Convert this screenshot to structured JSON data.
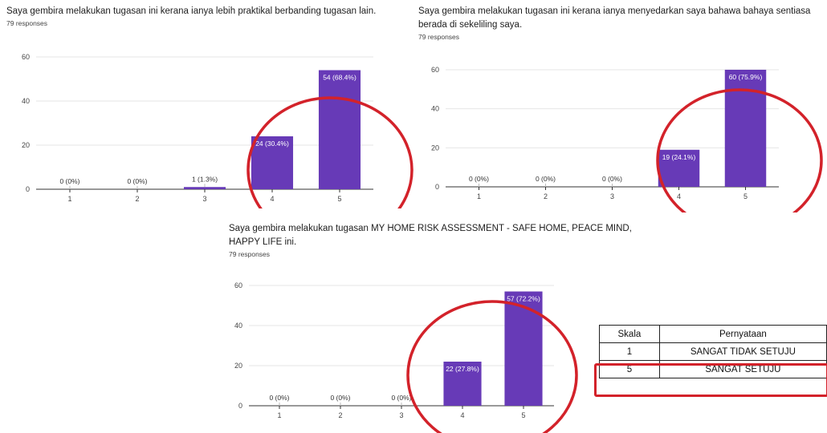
{
  "charts": [
    {
      "title_lines": [
        "Saya gembira melakukan tugasan  ini kerana ianya lebih praktikal berbanding tugasan lain."
      ],
      "responses": "79 responses"
    },
    {
      "title_lines": [
        "Saya gembira melakukan tugasan  ini kerana ianya menyedarkan saya bahawa bahaya sentiasa",
        "berada di sekeliling saya."
      ],
      "responses": "79 responses"
    },
    {
      "title_lines": [
        "Saya gembira melakukan tugasan MY HOME RISK ASSESSMENT - SAFE HOME, PEACE MIND,",
        "HAPPY LIFE ini."
      ],
      "responses": "79 responses"
    }
  ],
  "chart_data": [
    {
      "type": "bar",
      "categories": [
        "1",
        "2",
        "3",
        "4",
        "5"
      ],
      "values": [
        0,
        0,
        1,
        24,
        54
      ],
      "labels": [
        "0 (0%)",
        "0 (0%)",
        "1 (1.3%)",
        "24 (30.4%)",
        "54 (68.4%)"
      ],
      "ylim": [
        0,
        60
      ],
      "yticks": [
        "0",
        "20",
        "40",
        "60"
      ],
      "grid": true,
      "bar_color": "#673ab7",
      "highlight": "bars 4 and 5 circled in red"
    },
    {
      "type": "bar",
      "categories": [
        "1",
        "2",
        "3",
        "4",
        "5"
      ],
      "values": [
        0,
        0,
        0,
        19,
        60
      ],
      "labels": [
        "0 (0%)",
        "0 (0%)",
        "0 (0%)",
        "19 (24.1%)",
        "60 (75.9%)"
      ],
      "ylim": [
        0,
        60
      ],
      "yticks": [
        "0",
        "20",
        "40",
        "60"
      ],
      "grid": true,
      "bar_color": "#673ab7",
      "highlight": "bars 4 and 5 circled in red"
    },
    {
      "type": "bar",
      "categories": [
        "1",
        "2",
        "3",
        "4",
        "5"
      ],
      "values": [
        0,
        0,
        0,
        22,
        57
      ],
      "labels": [
        "0 (0%)",
        "0 (0%)",
        "0 (0%)",
        "22 (27.8%)",
        "57 (72.2%)"
      ],
      "ylim": [
        0,
        60
      ],
      "yticks": [
        "0",
        "20",
        "40",
        "60"
      ],
      "grid": true,
      "bar_color": "#673ab7",
      "highlight": "bars 4 and 5 circled in red"
    }
  ],
  "legend_table": {
    "headers": [
      "Skala",
      "Pernyataan"
    ],
    "rows": [
      [
        "1",
        "SANGAT TIDAK SETUJU"
      ],
      [
        "5",
        "SANGAT SETUJU"
      ]
    ],
    "highlighted_row": "5 — SANGAT SETUJU"
  },
  "colors": {
    "bar": "#673ab7",
    "highlight": "#d3222a"
  }
}
